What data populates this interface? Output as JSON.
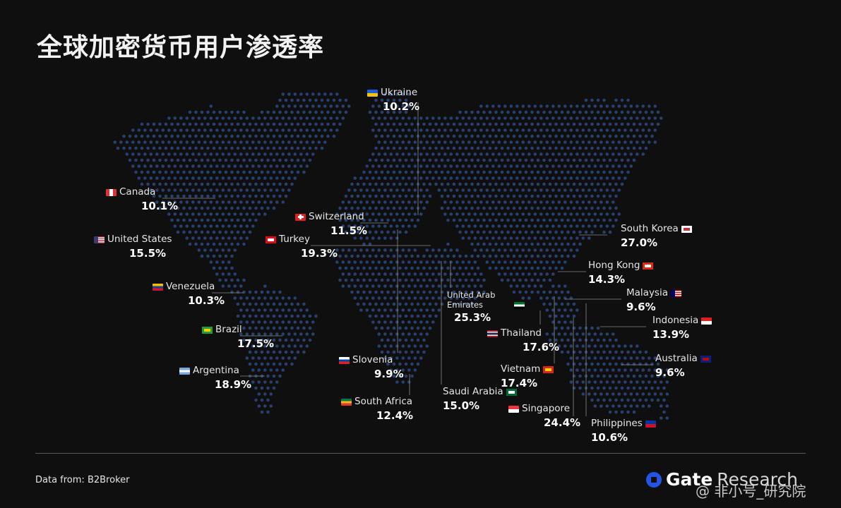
{
  "title": "全球加密货币用户渗透率",
  "colors": {
    "background": "#0f0f10",
    "map_dots": "#27406e",
    "leader_lines": "#8a8a8a"
  },
  "countries": [
    {
      "key": "ukraine",
      "name": "Ukraine",
      "value": "10.2%",
      "flag": [
        "#1f5fd6",
        "#f1c40f"
      ],
      "flag_orientation": "h"
    },
    {
      "key": "canada",
      "name": "Canada",
      "value": "10.1%",
      "flag": [
        "#e03030",
        "#ffffff",
        "#e03030"
      ],
      "flag_orientation": "v"
    },
    {
      "key": "united_states",
      "name": "United States",
      "value": "15.5%",
      "flag": [
        "#b22234",
        "#ffffff",
        "#3c3b6e"
      ],
      "flag_orientation": "us"
    },
    {
      "key": "switzerland",
      "name": "Switzerland",
      "value": "11.5%",
      "flag": [
        "#e02020",
        "#ffffff"
      ],
      "flag_orientation": "cross"
    },
    {
      "key": "turkey",
      "name": "Turkey",
      "value": "19.3%",
      "flag": [
        "#e30a17",
        "#ffffff"
      ],
      "flag_orientation": "solid"
    },
    {
      "key": "venezuela",
      "name": "Venezuela",
      "value": "10.3%",
      "flag": [
        "#f4c300",
        "#1c3f94",
        "#cf142b"
      ],
      "flag_orientation": "h"
    },
    {
      "key": "brazil",
      "name": "Brazil",
      "value": "17.5%",
      "flag": [
        "#1f9d3a",
        "#f4d000"
      ],
      "flag_orientation": "solid"
    },
    {
      "key": "argentina",
      "name": "Argentina",
      "value": "18.9%",
      "flag": [
        "#75aadb",
        "#ffffff",
        "#75aadb"
      ],
      "flag_orientation": "h"
    },
    {
      "key": "south_korea",
      "name": "South Korea",
      "value": "27.0%",
      "flag": [
        "#ffffff",
        "#cd2e3a"
      ],
      "flag_orientation": "solid"
    },
    {
      "key": "hong_kong",
      "name": "Hong Kong",
      "value": "14.3%",
      "flag": [
        "#de2910",
        "#ffffff"
      ],
      "flag_orientation": "solid"
    },
    {
      "key": "malaysia",
      "name": "Malaysia",
      "value": "9.6%",
      "flag": [
        "#cc0001",
        "#ffffff",
        "#010066"
      ],
      "flag_orientation": "us"
    },
    {
      "key": "indonesia",
      "name": "Indonesia",
      "value": "13.9%",
      "flag": [
        "#e02020",
        "#ffffff"
      ],
      "flag_orientation": "h"
    },
    {
      "key": "australia",
      "name": "Australia",
      "value": "9.6%",
      "flag": [
        "#00247d",
        "#cc0000"
      ],
      "flag_orientation": "solid"
    },
    {
      "key": "uae",
      "name": "United Arab Emirates",
      "name_lines": [
        "United Arab",
        "Emirates"
      ],
      "value": "25.3%",
      "flag": [
        "#00732f",
        "#ffffff",
        "#000000"
      ],
      "flag_orientation": "h"
    },
    {
      "key": "thailand",
      "name": "Thailand",
      "value": "17.6%",
      "flag": [
        "#a51931",
        "#f4f5f8",
        "#2d2a4a"
      ],
      "flag_orientation": "thai"
    },
    {
      "key": "slovenia",
      "name": "Slovenia",
      "value": "9.9%",
      "flag": [
        "#ffffff",
        "#0047ab",
        "#e02020"
      ],
      "flag_orientation": "h"
    },
    {
      "key": "saudi_arabia",
      "name": "Saudi Arabia",
      "value": "15.0%",
      "flag": [
        "#006c35",
        "#ffffff"
      ],
      "flag_orientation": "solid"
    },
    {
      "key": "vietnam",
      "name": "Vietnam",
      "value": "17.4%",
      "flag": [
        "#da251d",
        "#ffcd00"
      ],
      "flag_orientation": "solid"
    },
    {
      "key": "south_africa",
      "name": "South Africa",
      "value": "12.4%",
      "flag": [
        "#007a4d",
        "#ffb612",
        "#de3831"
      ],
      "flag_orientation": "h"
    },
    {
      "key": "singapore",
      "name": "Singapore",
      "value": "24.4%",
      "flag": [
        "#ef3340",
        "#ffffff"
      ],
      "flag_orientation": "h"
    },
    {
      "key": "philippines",
      "name": "Philippines",
      "value": "10.6%",
      "flag": [
        "#0038a8",
        "#ce1126"
      ],
      "flag_orientation": "h"
    }
  ],
  "footer": {
    "source_label": "Data from:",
    "source_value": "B2Broker",
    "brand_bold": "Gate",
    "brand_light": "Research",
    "watermark": "@ 非小号_研究院"
  }
}
